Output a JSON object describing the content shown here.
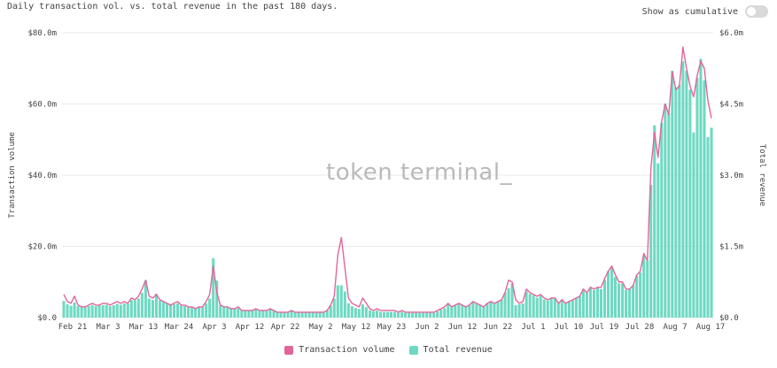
{
  "header": {
    "subtitle": "Daily transaction vol. vs. total revenue in the past 180 days.",
    "toggle_label": "Show as cumulative"
  },
  "watermark": "token terminal_",
  "colors": {
    "volume": "#e0669a",
    "revenue": "#6ed9c2",
    "grid": "#e9e9e9"
  },
  "chart_data": {
    "type": "bar",
    "title": "",
    "ylabel": "Transaction volume",
    "y2label": "Total revenue",
    "ylim": [
      0,
      80
    ],
    "y2lim": [
      0,
      6
    ],
    "y_ticks": [
      "$0.0",
      "$20.0m",
      "$40.0m",
      "$60.0m",
      "$80.0m"
    ],
    "y2_ticks": [
      "$0.0",
      "$1.5m",
      "$3.0m",
      "$4.5m",
      "$6.0m"
    ],
    "x_ticks": [
      "Feb 21",
      "Mar 3",
      "Mar 13",
      "Mar 24",
      "Apr 3",
      "Apr 12",
      "Apr 22",
      "May 2",
      "May 12",
      "May 23",
      "Jun 2",
      "Jun 12",
      "Jun 22",
      "Jul 1",
      "Jul 10",
      "Jul 19",
      "Jul 28",
      "Aug 7",
      "Aug 17"
    ],
    "grid": true,
    "legend_position": "bottom",
    "series": [
      {
        "name": "Transaction volume",
        "type": "line",
        "axis": "left",
        "unit": "$m",
        "values": [
          6.5,
          4.5,
          4,
          6,
          3.5,
          3,
          3,
          3.5,
          4,
          3.5,
          3.5,
          4,
          4,
          3.5,
          4,
          4.5,
          4,
          4.5,
          4,
          5.5,
          5,
          6,
          8,
          10.5,
          6,
          5.5,
          6.5,
          5,
          4.5,
          4,
          3.5,
          4,
          4.5,
          3.5,
          3.5,
          3,
          3,
          2.5,
          3,
          3,
          4.5,
          6.5,
          14.5,
          7,
          3.5,
          3,
          3,
          2.5,
          2.5,
          3,
          2,
          2,
          2,
          2,
          2.5,
          2,
          2,
          2,
          2.5,
          2,
          1.5,
          1.5,
          1.5,
          1.5,
          2,
          1.5,
          1.5,
          1.5,
          1.5,
          1.5,
          1.5,
          1.5,
          1.5,
          1.5,
          2,
          3.5,
          6,
          17.5,
          22.5,
          14,
          5.5,
          4,
          3.5,
          3,
          5.5,
          4,
          2.5,
          2,
          2.5,
          2,
          2,
          2,
          2,
          2,
          1.5,
          2,
          1.5,
          1.5,
          1.5,
          1.5,
          1.5,
          1.5,
          1.5,
          1.5,
          1.5,
          2,
          2.5,
          3,
          4,
          3,
          3.5,
          4,
          3.5,
          3,
          3.5,
          4.5,
          4,
          3.5,
          3,
          4,
          4.5,
          4,
          4.5,
          5,
          7,
          10.5,
          10,
          5,
          4,
          4.5,
          8,
          7,
          6.5,
          6,
          6.5,
          5.5,
          5,
          5.5,
          5.5,
          4,
          5,
          4,
          4.5,
          5,
          5.5,
          6,
          8,
          7,
          8.5,
          8,
          8.5,
          8.5,
          11,
          13,
          14.5,
          12,
          10,
          10,
          8,
          8,
          9,
          12,
          13,
          18,
          16,
          42,
          52,
          45,
          55,
          60,
          57,
          69,
          64,
          65,
          76,
          70,
          65,
          62,
          68,
          72,
          70,
          61,
          56
        ]
      },
      {
        "name": "Total revenue",
        "type": "bar",
        "axis": "right",
        "unit": "$m",
        "values": [
          0.35,
          0.28,
          0.25,
          0.32,
          0.24,
          0.22,
          0.22,
          0.24,
          0.26,
          0.24,
          0.25,
          0.26,
          0.27,
          0.24,
          0.26,
          0.29,
          0.27,
          0.3,
          0.29,
          0.37,
          0.36,
          0.4,
          0.52,
          0.78,
          0.4,
          0.37,
          0.5,
          0.36,
          0.33,
          0.3,
          0.26,
          0.28,
          0.3,
          0.25,
          0.24,
          0.22,
          0.22,
          0.2,
          0.22,
          0.22,
          0.3,
          0.4,
          1.25,
          0.78,
          0.26,
          0.22,
          0.22,
          0.2,
          0.2,
          0.2,
          0.16,
          0.16,
          0.15,
          0.15,
          0.18,
          0.15,
          0.15,
          0.15,
          0.18,
          0.15,
          0.12,
          0.12,
          0.11,
          0.11,
          0.14,
          0.12,
          0.11,
          0.11,
          0.11,
          0.11,
          0.11,
          0.11,
          0.11,
          0.11,
          0.15,
          0.25,
          0.4,
          0.68,
          0.68,
          0.55,
          0.3,
          0.24,
          0.2,
          0.18,
          0.28,
          0.22,
          0.15,
          0.13,
          0.15,
          0.12,
          0.12,
          0.12,
          0.12,
          0.12,
          0.1,
          0.12,
          0.1,
          0.1,
          0.1,
          0.1,
          0.1,
          0.1,
          0.1,
          0.1,
          0.1,
          0.13,
          0.17,
          0.2,
          0.28,
          0.22,
          0.26,
          0.3,
          0.27,
          0.23,
          0.26,
          0.34,
          0.3,
          0.26,
          0.23,
          0.3,
          0.34,
          0.3,
          0.34,
          0.38,
          0.53,
          0.62,
          0.72,
          0.26,
          0.28,
          0.3,
          0.55,
          0.5,
          0.47,
          0.42,
          0.46,
          0.38,
          0.36,
          0.4,
          0.42,
          0.3,
          0.38,
          0.3,
          0.34,
          0.38,
          0.42,
          0.45,
          0.6,
          0.52,
          0.64,
          0.58,
          0.63,
          0.6,
          0.8,
          0.98,
          1.06,
          0.86,
          0.72,
          0.72,
          0.58,
          0.6,
          0.68,
          0.88,
          0.95,
          1.3,
          1.2,
          2.8,
          4.05,
          3.25,
          4.1,
          4.5,
          4.3,
          5.2,
          4.85,
          4.9,
          5.4,
          5.2,
          4.8,
          3.9,
          5.05,
          5.45,
          5.0,
          3.8,
          4.0
        ]
      }
    ]
  }
}
